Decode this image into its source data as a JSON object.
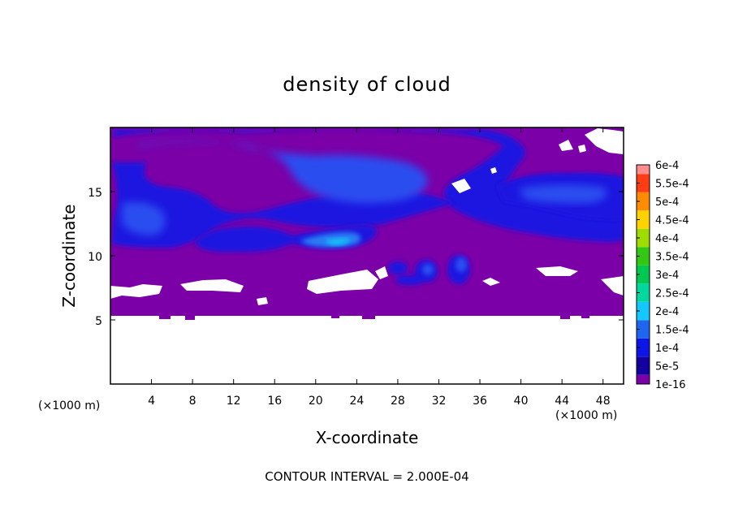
{
  "chart_data": {
    "type": "heatmap",
    "title": "density of cloud",
    "xlabel": "X-coordinate",
    "ylabel": "Z-coordinate",
    "x_unit_left": "(×1000 m)",
    "x_unit_right": "(×1000 m)",
    "xlim": [
      0,
      50
    ],
    "ylim": [
      0,
      20
    ],
    "x_ticks": [
      4,
      8,
      12,
      16,
      20,
      24,
      28,
      32,
      36,
      40,
      44,
      48
    ],
    "y_ticks": [
      5,
      10,
      15
    ],
    "footer": "CONTOUR INTERVAL = 2.000E-04",
    "colorbar": {
      "levels": [
        "1e-16",
        "5e-5",
        "1e-4",
        "1.5e-4",
        "2e-4",
        "2.5e-4",
        "3e-4",
        "3.5e-4",
        "4e-4",
        "4.5e-4",
        "5e-4",
        "5.5e-4",
        "6e-4"
      ],
      "colors": [
        "#7b00a8",
        "#1400a0",
        "#0c16e6",
        "#1e66f0",
        "#14c8ff",
        "#00d8a0",
        "#00c850",
        "#32c814",
        "#a0dc00",
        "#ffd200",
        "#ff8c00",
        "#ff3c14",
        "#ff8c8c"
      ]
    }
  }
}
